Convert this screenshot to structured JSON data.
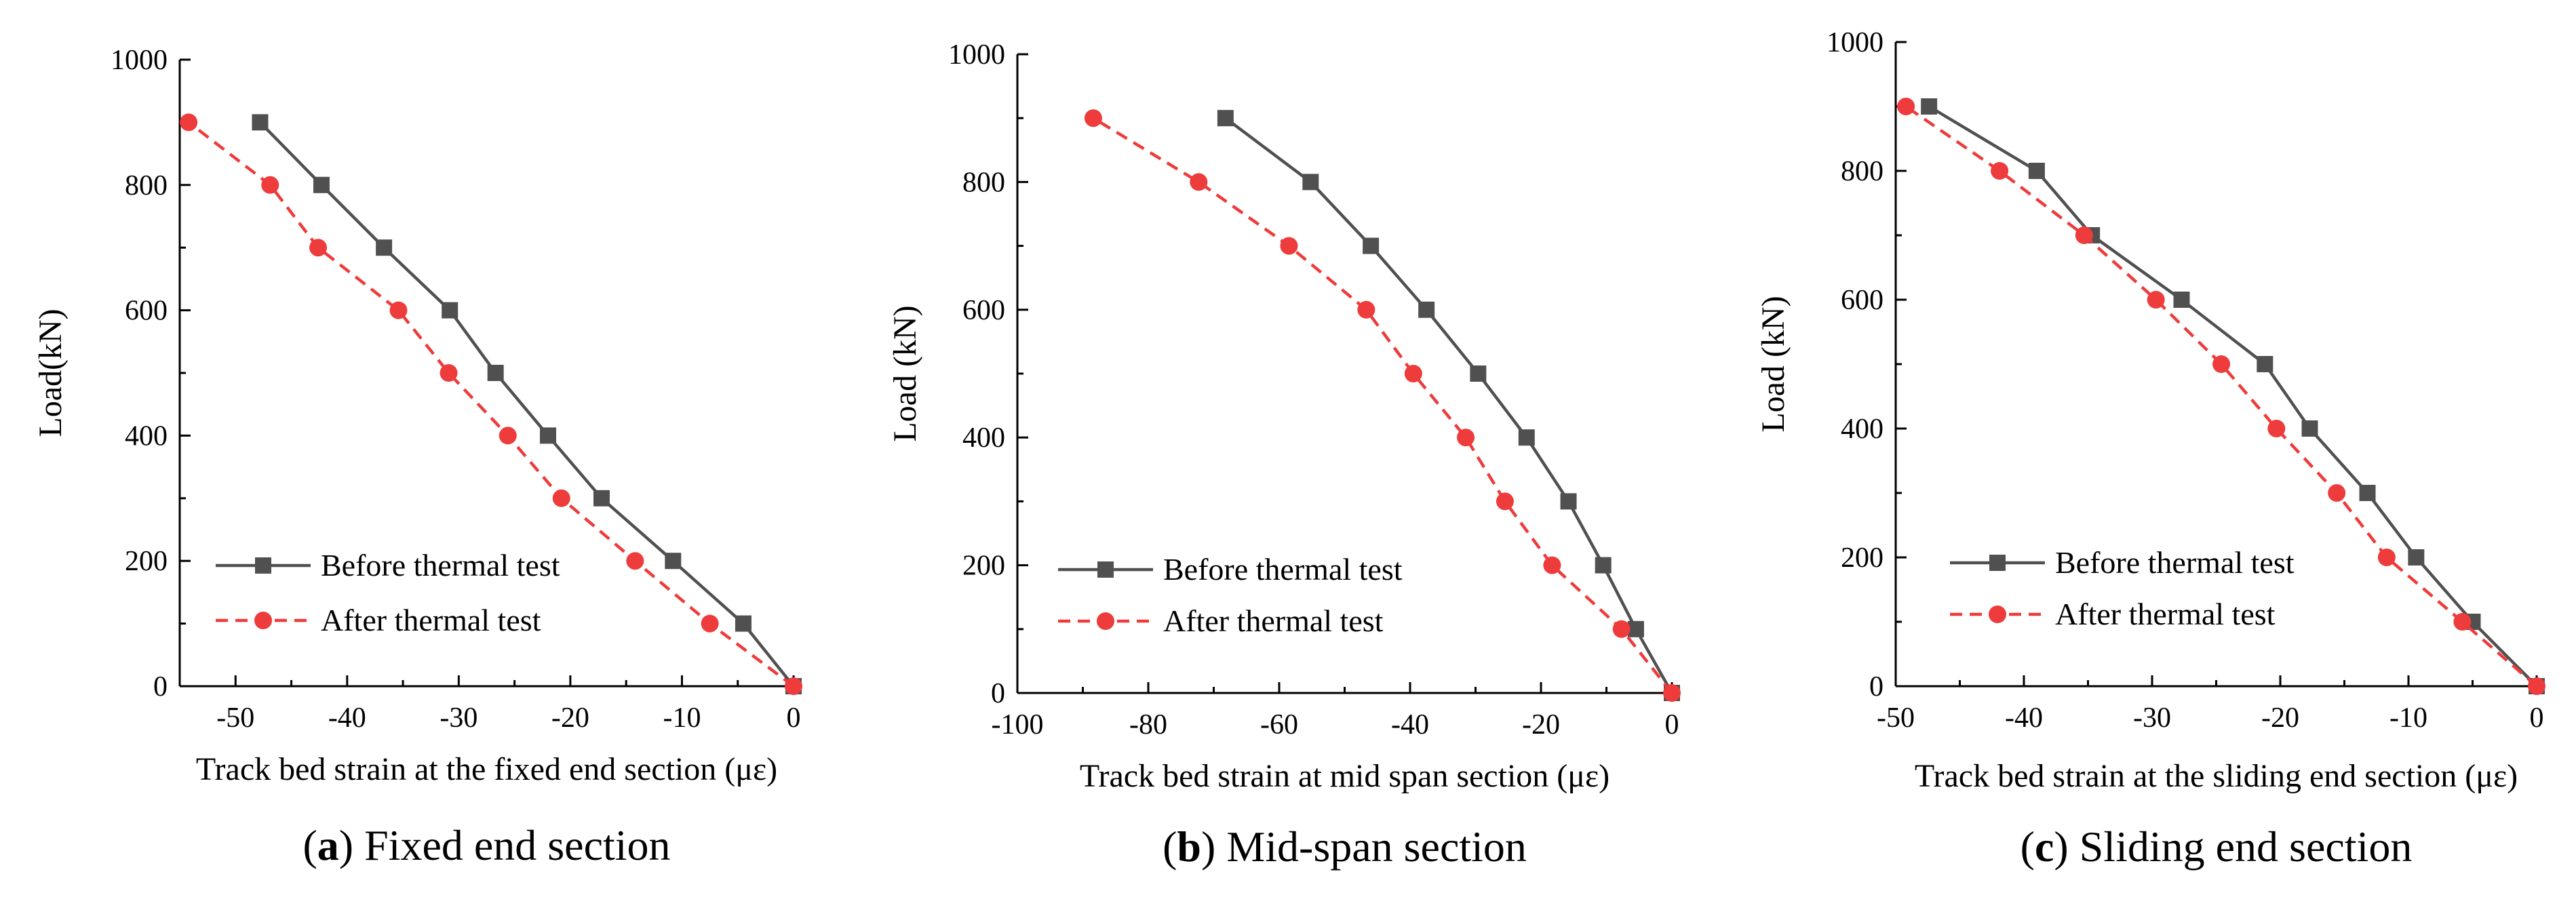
{
  "chart_data": [
    {
      "type": "line",
      "panel_letter": "a",
      "caption": "Fixed end section",
      "xlabel": "Track bed strain at the fixed end section (με)",
      "ylabel": "Load(kN)",
      "xlim": [
        -55,
        0
      ],
      "ylim": [
        0,
        1000
      ],
      "xticks": [
        -50,
        -40,
        -30,
        -20,
        -10,
        0
      ],
      "yticks": [
        0,
        200,
        400,
        600,
        800,
        1000
      ],
      "xtick_labels": [
        "-50",
        "-40",
        "-30",
        "-20",
        "-10",
        "0"
      ],
      "ytick_labels": [
        "0",
        "200",
        "400",
        "600",
        "800",
        "1000"
      ],
      "legend_position": "lower-left",
      "series": [
        {
          "name": "Before thermal test",
          "color": "#505050",
          "marker": "square",
          "line": "solid",
          "x": [
            0,
            -4.5,
            -10.8,
            -17.2,
            -22,
            -26.7,
            -30.8,
            -36.7,
            -42.3,
            -47.8
          ],
          "y": [
            0,
            100,
            200,
            300,
            400,
            500,
            600,
            700,
            800,
            900
          ]
        },
        {
          "name": "After thermal test",
          "color": "#ee3b3b",
          "marker": "circle",
          "line": "dashed",
          "x": [
            0,
            -7.5,
            -14.2,
            -20.8,
            -25.6,
            -30.9,
            -35.4,
            -42.6,
            -46.9,
            -54.2
          ],
          "y": [
            0,
            100,
            200,
            300,
            400,
            500,
            600,
            700,
            800,
            900
          ]
        }
      ]
    },
    {
      "type": "line",
      "panel_letter": "b",
      "caption": "Mid-span section",
      "xlabel": "Track bed strain at mid span section (με)",
      "ylabel": "Load (kN)",
      "xlim": [
        -100,
        0
      ],
      "ylim": [
        0,
        1000
      ],
      "xticks": [
        -100,
        -80,
        -60,
        -40,
        -20,
        0
      ],
      "yticks": [
        0,
        200,
        400,
        600,
        800,
        1000
      ],
      "xtick_labels": [
        "-100",
        "-80",
        "-60",
        "-40",
        "-20",
        "0"
      ],
      "ytick_labels": [
        "0",
        "200",
        "400",
        "600",
        "800",
        "1000"
      ],
      "legend_position": "lower-left",
      "series": [
        {
          "name": "Before thermal test",
          "color": "#505050",
          "marker": "square",
          "line": "solid",
          "x": [
            0,
            -5.5,
            -10.5,
            -15.8,
            -22.2,
            -29.6,
            -37.5,
            -46,
            -55.2,
            -68.2
          ],
          "y": [
            0,
            100,
            200,
            300,
            400,
            500,
            600,
            700,
            800,
            900
          ]
        },
        {
          "name": "After thermal test",
          "color": "#ee3b3b",
          "marker": "circle",
          "line": "dashed",
          "x": [
            0,
            -7.7,
            -18.3,
            -25.5,
            -31.5,
            -39.5,
            -46.7,
            -58.5,
            -72.3,
            -88.4
          ],
          "y": [
            0,
            100,
            200,
            300,
            400,
            500,
            600,
            700,
            800,
            900
          ]
        }
      ]
    },
    {
      "type": "line",
      "panel_letter": "c",
      "caption": "Sliding end section",
      "xlabel": "Track bed strain at the sliding end section (με)",
      "ylabel": "Load (kN)",
      "xlim": [
        -50,
        0
      ],
      "ylim": [
        0,
        1000
      ],
      "xticks": [
        -50,
        -40,
        -30,
        -20,
        -10,
        0
      ],
      "yticks": [
        0,
        200,
        400,
        600,
        800,
        1000
      ],
      "xtick_labels": [
        "-50",
        "-40",
        "-30",
        "-20",
        "-10",
        "0"
      ],
      "ytick_labels": [
        "0",
        "200",
        "400",
        "600",
        "800",
        "1000"
      ],
      "legend_position": "lower-left",
      "series": [
        {
          "name": "Before thermal test",
          "color": "#505050",
          "marker": "square",
          "line": "solid",
          "x": [
            0,
            -5,
            -9.4,
            -13.2,
            -17.7,
            -21.2,
            -27.7,
            -34.7,
            -39,
            -47.4
          ],
          "y": [
            0,
            100,
            200,
            300,
            400,
            500,
            600,
            700,
            800,
            900
          ]
        },
        {
          "name": "After thermal test",
          "color": "#ee3b3b",
          "marker": "circle",
          "line": "dashed",
          "x": [
            0,
            -5.8,
            -11.7,
            -15.6,
            -20.3,
            -24.6,
            -29.7,
            -35.3,
            -41.9,
            -49.2
          ],
          "y": [
            0,
            100,
            200,
            300,
            400,
            500,
            600,
            700,
            800,
            900
          ]
        }
      ]
    }
  ]
}
